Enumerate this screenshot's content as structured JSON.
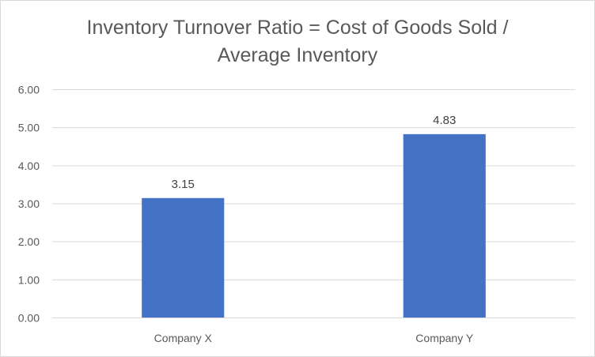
{
  "chart_data": {
    "type": "bar",
    "title": "Inventory Turnover Ratio = Cost of Goods Sold / Average Inventory",
    "title_lines": [
      "Inventory Turnover Ratio = Cost of Goods Sold /",
      "Average Inventory"
    ],
    "categories": [
      "Company X",
      "Company Y"
    ],
    "values": [
      3.15,
      4.83
    ],
    "data_labels": [
      "3.15",
      "4.83"
    ],
    "y_ticks": [
      "0.00",
      "1.00",
      "2.00",
      "3.00",
      "4.00",
      "5.00",
      "6.00"
    ],
    "ylim": [
      0,
      6
    ],
    "xlabel": "",
    "ylabel": "",
    "grid": true,
    "legend": "none",
    "bar_color": "#4472C4"
  }
}
